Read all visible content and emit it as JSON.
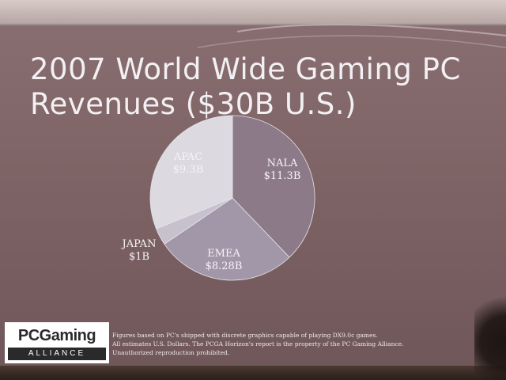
{
  "slide": {
    "title_line1": "2007 World Wide Gaming PC",
    "title_line2": "Revenues ($30B U.S.)",
    "footnote_lines": [
      "Figures based on PC's shipped with discrete graphics capable of playing DX9.0c games.",
      "All estimates U.S. Dollars. The PCGA Horizon's report is the property of the PC Gaming Alliance.",
      "Unauthorized reproduction prohibited."
    ]
  },
  "logo": {
    "main": "PCGaming",
    "sub": "ALLIANCE"
  },
  "chart_data": {
    "type": "pie",
    "title": "2007 World Wide Gaming PC Revenues ($30B U.S.)",
    "slices": [
      {
        "label": "NALA",
        "value_label": "$11.3B",
        "value": 11.3,
        "color": "#8d7a88"
      },
      {
        "label": "EMEA",
        "value_label": "$8.28B",
        "value": 8.28,
        "color": "#a297a9"
      },
      {
        "label": "JAPAN",
        "value_label": "$1B",
        "value": 1.0,
        "color": "#c6c1cd"
      },
      {
        "label": "APAC",
        "value_label": "$9.3B",
        "value": 9.3,
        "color": "#dcd9e1"
      }
    ],
    "legend": "none"
  }
}
